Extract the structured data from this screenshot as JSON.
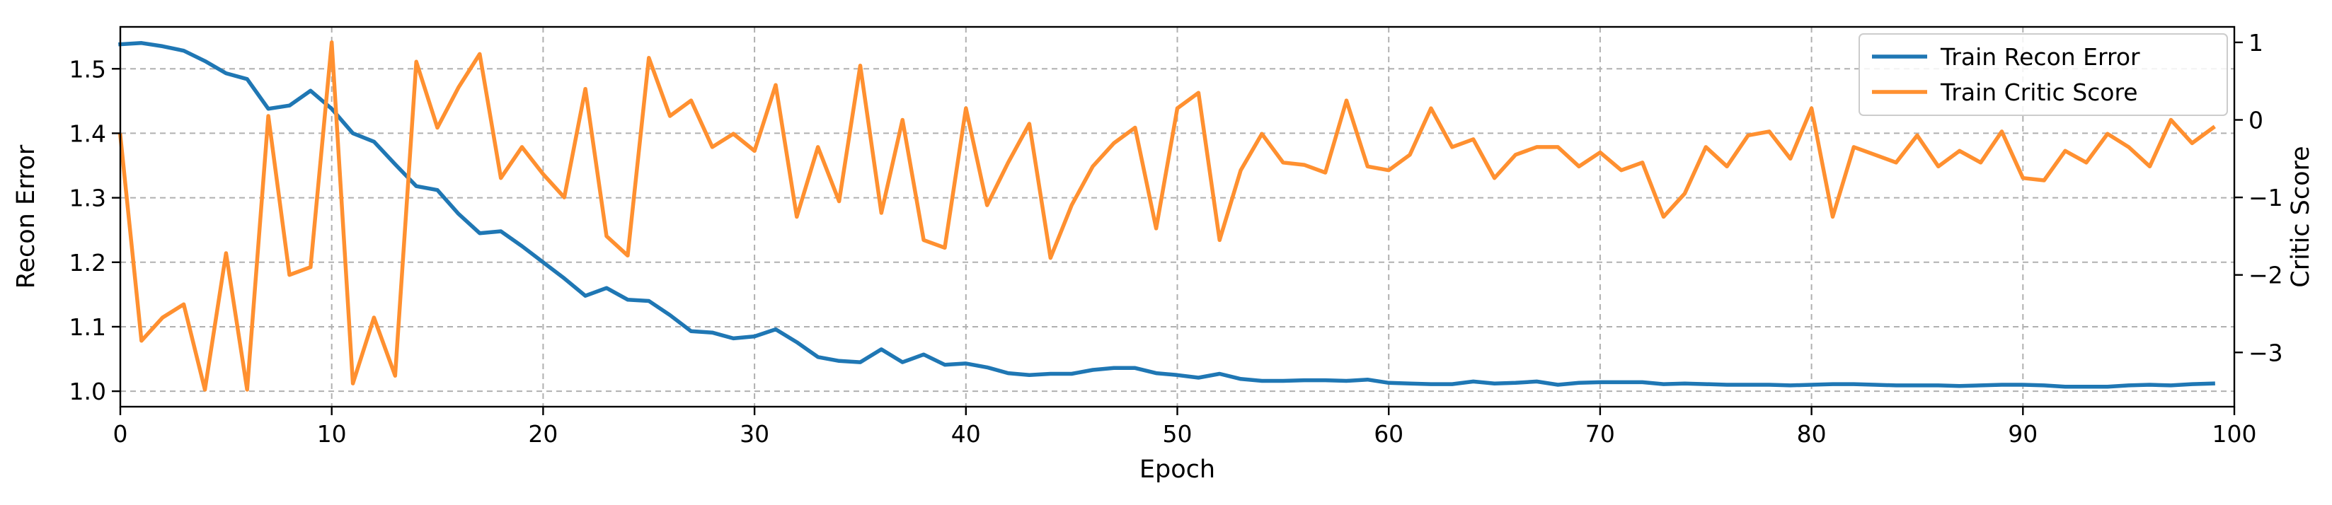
{
  "chart_data": {
    "type": "line",
    "title": "",
    "xlabel": "Epoch",
    "ylabel_left": "Recon Error",
    "ylabel_right": "Critic Score",
    "xlim": [
      0,
      100
    ],
    "ylim_left": [
      0.976,
      1.565
    ],
    "ylim_right": [
      -3.7,
      1.2
    ],
    "x_ticks": [
      0,
      10,
      20,
      30,
      40,
      50,
      60,
      70,
      80,
      90,
      100
    ],
    "y_left_ticks": [
      1.0,
      1.1,
      1.2,
      1.3,
      1.4,
      1.5
    ],
    "y_left_tick_labels": [
      "1.0",
      "1.1",
      "1.2",
      "1.3",
      "1.4",
      "1.5"
    ],
    "y_right_ticks": [
      -3,
      -2,
      -1,
      0,
      1
    ],
    "y_right_tick_labels": [
      "−3",
      "−2",
      "−1",
      "0",
      "1"
    ],
    "grid": true,
    "legend_position": "top-right",
    "x": [
      0,
      1,
      2,
      3,
      4,
      5,
      6,
      7,
      8,
      9,
      10,
      11,
      12,
      13,
      14,
      15,
      16,
      17,
      18,
      19,
      20,
      21,
      22,
      23,
      24,
      25,
      26,
      27,
      28,
      29,
      30,
      31,
      32,
      33,
      34,
      35,
      36,
      37,
      38,
      39,
      40,
      41,
      42,
      43,
      44,
      45,
      46,
      47,
      48,
      49,
      50,
      51,
      52,
      53,
      54,
      55,
      56,
      57,
      58,
      59,
      60,
      61,
      62,
      63,
      64,
      65,
      66,
      67,
      68,
      69,
      70,
      71,
      72,
      73,
      74,
      75,
      76,
      77,
      78,
      79,
      80,
      81,
      82,
      83,
      84,
      85,
      86,
      87,
      88,
      89,
      90,
      91,
      92,
      93,
      94,
      95,
      96,
      97,
      98,
      99
    ],
    "series": [
      {
        "name": "Train Recon Error",
        "axis": "left",
        "color": "#1f77b4",
        "values": [
          1.538,
          1.54,
          1.535,
          1.528,
          1.512,
          1.493,
          1.484,
          1.438,
          1.443,
          1.466,
          1.438,
          1.4,
          1.387,
          1.352,
          1.318,
          1.312,
          1.275,
          1.245,
          1.248,
          1.225,
          1.2,
          1.175,
          1.148,
          1.16,
          1.142,
          1.14,
          1.118,
          1.093,
          1.091,
          1.082,
          1.085,
          1.096,
          1.076,
          1.053,
          1.047,
          1.045,
          1.065,
          1.045,
          1.057,
          1.041,
          1.043,
          1.037,
          1.028,
          1.025,
          1.027,
          1.027,
          1.033,
          1.036,
          1.036,
          1.028,
          1.025,
          1.021,
          1.027,
          1.019,
          1.016,
          1.016,
          1.017,
          1.017,
          1.016,
          1.018,
          1.013,
          1.012,
          1.011,
          1.011,
          1.015,
          1.012,
          1.013,
          1.015,
          1.01,
          1.013,
          1.014,
          1.014,
          1.014,
          1.011,
          1.012,
          1.011,
          1.01,
          1.01,
          1.01,
          1.009,
          1.01,
          1.011,
          1.011,
          1.01,
          1.009,
          1.009,
          1.009,
          1.008,
          1.009,
          1.01,
          1.01,
          1.009,
          1.007,
          1.007,
          1.007,
          1.009,
          1.01,
          1.009,
          1.011,
          1.012
        ]
      },
      {
        "name": "Train Critic Score",
        "axis": "right",
        "color": "#ff9030",
        "values": [
          -0.2,
          -2.85,
          -2.55,
          -2.38,
          -3.48,
          -1.72,
          -3.48,
          0.05,
          -2.0,
          -1.9,
          1.0,
          -3.4,
          -2.55,
          -3.3,
          0.75,
          -0.1,
          0.42,
          0.85,
          -0.75,
          -0.35,
          -0.7,
          -1.0,
          0.4,
          -1.5,
          -1.75,
          0.8,
          0.05,
          0.25,
          -0.35,
          -0.18,
          -0.4,
          0.45,
          -1.25,
          -0.35,
          -1.05,
          0.7,
          -1.2,
          0.0,
          -1.55,
          -1.65,
          0.15,
          -1.1,
          -0.55,
          -0.05,
          -1.78,
          -1.1,
          -0.6,
          -0.3,
          -0.1,
          -1.4,
          0.15,
          0.35,
          -1.55,
          -0.65,
          -0.18,
          -0.55,
          -0.58,
          -0.68,
          0.25,
          -0.6,
          -0.65,
          -0.45,
          0.15,
          -0.35,
          -0.25,
          -0.75,
          -0.45,
          -0.35,
          -0.35,
          -0.6,
          -0.42,
          -0.65,
          -0.55,
          -1.25,
          -0.95,
          -0.35,
          -0.6,
          -0.2,
          -0.15,
          -0.5,
          0.15,
          -1.25,
          -0.35,
          -0.45,
          -0.55,
          -0.2,
          -0.6,
          -0.4,
          -0.55,
          -0.15,
          -0.75,
          -0.78,
          -0.4,
          -0.55,
          -0.18,
          -0.35,
          -0.6,
          0.0,
          -0.3,
          -0.1
        ]
      }
    ]
  }
}
